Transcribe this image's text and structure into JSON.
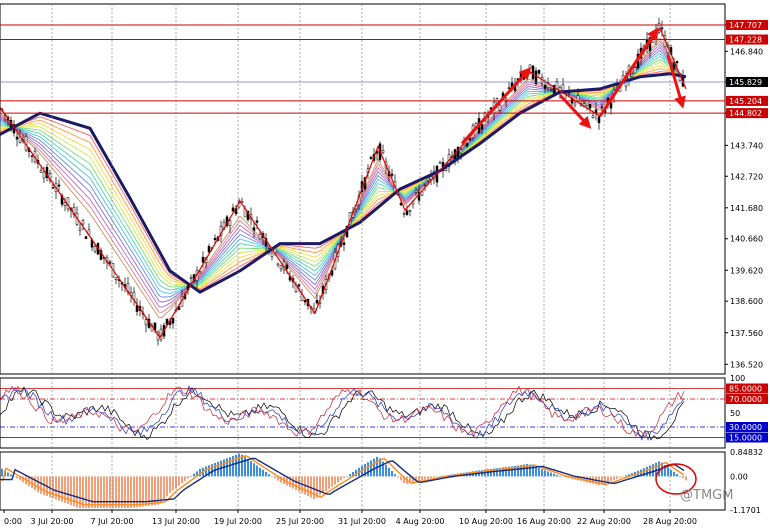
{
  "chart_data": [
    {
      "type": "candlestick",
      "panel": "price",
      "ylim": [
        136.2,
        148.4
      ],
      "y_ticks": [
        "147.720",
        "146.840",
        "145.829",
        "144.802",
        "143.740",
        "142.720",
        "141.680",
        "140.660",
        "139.620",
        "138.600",
        "137.560",
        "136.520"
      ],
      "x_ticks": [
        "0:00",
        "3 Jul 20:00",
        "7 Jul 20:00",
        "13 Jul 20:00",
        "19 Jul 20:00",
        "25 Jul 20:00",
        "31 Jul 20:00",
        "4 Aug 20:00",
        "10 Aug 20:00",
        "16 Aug 20:00",
        "22 Aug 20:00",
        "28 Aug 20:00"
      ],
      "zigzag": [
        [
          0,
          145.0
        ],
        [
          160,
          137.4
        ],
        [
          240,
          141.9
        ],
        [
          315,
          138.2
        ],
        [
          378,
          143.7
        ],
        [
          405,
          141.6
        ],
        [
          528,
          146.2
        ],
        [
          600,
          144.7
        ],
        [
          660,
          147.6
        ],
        [
          686,
          145.6
        ]
      ],
      "moving_average": [
        [
          0,
          144.1
        ],
        [
          40,
          144.8
        ],
        [
          90,
          144.3
        ],
        [
          130,
          142.0
        ],
        [
          170,
          139.6
        ],
        [
          200,
          138.9
        ],
        [
          240,
          139.6
        ],
        [
          280,
          140.5
        ],
        [
          320,
          140.5
        ],
        [
          360,
          141.2
        ],
        [
          400,
          142.3
        ],
        [
          440,
          142.9
        ],
        [
          480,
          143.8
        ],
        [
          520,
          144.8
        ],
        [
          560,
          145.5
        ],
        [
          600,
          145.6
        ],
        [
          640,
          146.0
        ],
        [
          670,
          146.1
        ],
        [
          686,
          146.0
        ]
      ],
      "horizontal_lines": [
        {
          "label": "147.707",
          "value": 147.707,
          "color": "#cc0000"
        },
        {
          "label": "147.228",
          "value": 147.228,
          "color": "#cc0000"
        },
        {
          "label": "145.829",
          "value": 145.829,
          "color": "#000000"
        },
        {
          "label": "145.204",
          "value": 145.204,
          "color": "#cc0000"
        },
        {
          "label": "144.802",
          "value": 144.802,
          "color": "#cc0000"
        }
      ],
      "arrows": [
        [
          462,
          143.8,
          528,
          146.2
        ],
        [
          560,
          145.4,
          588,
          144.4
        ],
        [
          600,
          144.7,
          656,
          147.5
        ],
        [
          668,
          146.7,
          682,
          145.1
        ]
      ],
      "colors": {
        "zigzag": "#e00000",
        "ma": "#1a1a66",
        "price_line": "#000000",
        "level": "#cc0000"
      }
    },
    {
      "type": "line",
      "panel": "stochastic",
      "ylim": [
        0,
        100
      ],
      "y_ticks": [
        "100",
        "85.0000",
        "70.0000",
        "50",
        "30.0000",
        "15.0000"
      ],
      "levels": [
        {
          "label": "85.0000",
          "value": 85,
          "color": "#cc0000"
        },
        {
          "label": "70.0000",
          "value": 70,
          "color": "#cc0000"
        },
        {
          "label": "30.0000",
          "value": 30,
          "color": "#0000cc"
        },
        {
          "label": "15.0000",
          "value": 15,
          "color": "#0000cc"
        }
      ]
    },
    {
      "type": "bar",
      "panel": "macd",
      "ylim": [
        -1.1701,
        0.84832
      ],
      "y_ticks": [
        "0.84832",
        "0.00",
        "-1.1701"
      ]
    }
  ],
  "watermark": "@TMGM"
}
